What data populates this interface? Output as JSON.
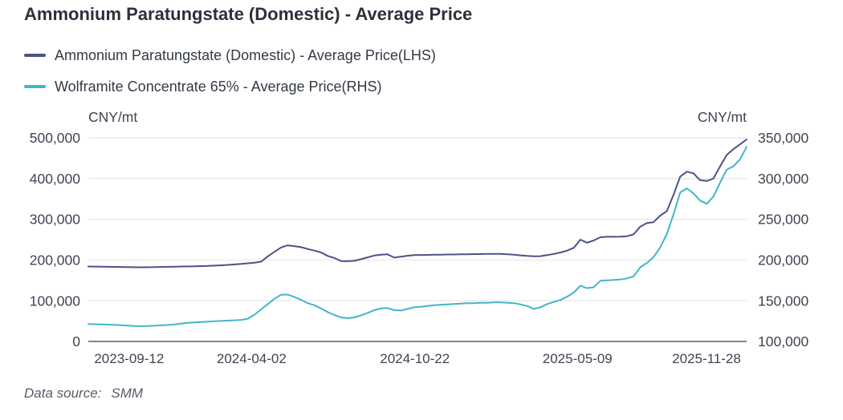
{
  "page": {
    "title": "Ammonium Paratungstate (Domestic) - Average Price",
    "data_source": {
      "label": "Data source:",
      "value": "SMM"
    }
  },
  "legend": [
    {
      "label": "Ammonium Paratungstate (Domestic) - Average Price(LHS)",
      "color": "#4c5385"
    },
    {
      "label": "Wolframite Concentrate 65% - Average Price(RHS)",
      "color": "#41b6c8"
    }
  ],
  "chart_data": {
    "type": "line",
    "title": "Ammonium Paratungstate (Domestic) - Average Price",
    "grid": true,
    "legend_position": "top-left",
    "left_axis": {
      "unit": "CNY/mt",
      "min": 0,
      "max": 500000,
      "ticks": [
        0,
        100000,
        200000,
        300000,
        400000,
        500000
      ],
      "tick_labels": [
        "0",
        "100,000",
        "200,000",
        "300,000",
        "400,000",
        "500,000"
      ]
    },
    "right_axis": {
      "unit": "CNY/mt",
      "min": 100000,
      "max": 350000,
      "ticks": [
        100000,
        150000,
        200000,
        250000,
        300000,
        350000
      ],
      "tick_labels": [
        "100,000",
        "150,000",
        "200,000",
        "250,000",
        "300,000",
        "350,000"
      ]
    },
    "x_ticks": [
      {
        "label": "2023-09-12",
        "pos": 0.062
      },
      {
        "label": "2024-04-02",
        "pos": 0.248
      },
      {
        "label": "2024-10-22",
        "pos": 0.496
      },
      {
        "label": "2025-05-09",
        "pos": 0.743
      },
      {
        "label": "2025-11-28",
        "pos": 0.939
      }
    ],
    "x_spacing": "even",
    "series": [
      {
        "name": "Ammonium Paratungstate (Domestic) - Average Price(LHS)",
        "axis": "left",
        "color": "#4c5385",
        "values": [
          184000,
          183800,
          183500,
          183200,
          183000,
          182800,
          182500,
          182200,
          182000,
          182200,
          182500,
          183000,
          183300,
          183600,
          184000,
          184300,
          184600,
          185000,
          185500,
          186200,
          187000,
          188000,
          189200,
          190500,
          192000,
          193500,
          196000,
          209000,
          220000,
          231000,
          236000,
          234000,
          231500,
          227000,
          223000,
          218500,
          210000,
          205000,
          197500,
          197000,
          198000,
          202000,
          206500,
          211000,
          213000,
          214000,
          206000,
          208000,
          210500,
          212000,
          212500,
          212500,
          213000,
          213000,
          213500,
          213500,
          214000,
          214000,
          214500,
          214500,
          215000,
          215000,
          215000,
          214000,
          213000,
          211500,
          210000,
          209000,
          209500,
          212000,
          215000,
          218500,
          223000,
          230000,
          250000,
          242500,
          248000,
          256000,
          257000,
          257000,
          257500,
          258500,
          263000,
          282000,
          291000,
          293000,
          309000,
          320000,
          360000,
          405000,
          417000,
          413000,
          396000,
          394000,
          400000,
          430000,
          458000,
          472000,
          484000,
          496000
        ]
      },
      {
        "name": "Wolframite Concentrate 65% - Average Price(RHS)",
        "axis": "right",
        "color": "#41b6c8",
        "values": [
          121500,
          121200,
          121000,
          120700,
          120400,
          120000,
          119500,
          119000,
          118800,
          119000,
          119400,
          119800,
          120300,
          121000,
          122000,
          122800,
          123300,
          123800,
          124300,
          124800,
          125200,
          125600,
          126000,
          126500,
          128000,
          133000,
          139500,
          146000,
          152500,
          157500,
          157500,
          154500,
          151000,
          147000,
          144500,
          140500,
          136000,
          132500,
          129500,
          128500,
          129500,
          132000,
          135000,
          138500,
          140500,
          141000,
          138500,
          138000,
          140000,
          142000,
          142500,
          143500,
          144500,
          145000,
          145500,
          146000,
          146500,
          147000,
          147000,
          147500,
          147500,
          148000,
          148000,
          147500,
          147000,
          145500,
          143500,
          140000,
          142000,
          146000,
          148500,
          151000,
          155000,
          160000,
          168500,
          165500,
          166500,
          174500,
          175000,
          175500,
          176000,
          177500,
          180000,
          191000,
          196500,
          203500,
          215500,
          232000,
          256000,
          283000,
          288000,
          282000,
          273000,
          269000,
          278000,
          295000,
          311000,
          315000,
          323500,
          339000
        ]
      }
    ]
  }
}
